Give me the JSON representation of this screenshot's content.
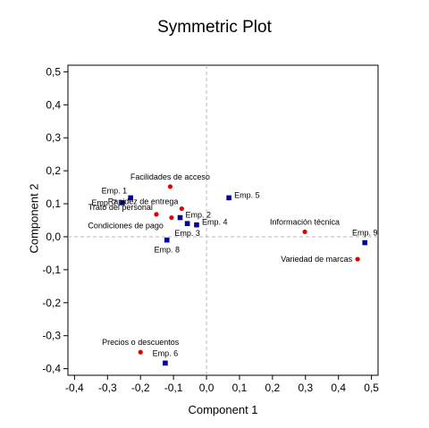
{
  "chart_data": {
    "type": "scatter",
    "title": "Symmetric Plot",
    "xlabel": "Component  1",
    "ylabel": "Component  2",
    "xlim": [
      -0.42,
      0.52
    ],
    "ylim": [
      -0.42,
      0.52
    ],
    "xticks": [
      -0.4,
      -0.3,
      -0.2,
      -0.1,
      0.0,
      0.1,
      0.2,
      0.3,
      0.4,
      0.5
    ],
    "yticks": [
      -0.4,
      -0.3,
      -0.2,
      -0.1,
      0.0,
      0.1,
      0.2,
      0.3,
      0.4,
      0.5
    ],
    "xtick_labels": [
      "-0,4",
      "-0,3",
      "-0,2",
      "-0,1",
      "0,0",
      "0,1",
      "0,2",
      "0,3",
      "0,4",
      "0,5"
    ],
    "ytick_labels": [
      "-0,4",
      "-0,3",
      "-0,2",
      "-0,1",
      "0,0",
      "0,1",
      "0,2",
      "0,3",
      "0,4",
      "0,5"
    ],
    "reference_lines": {
      "x": 0,
      "y": 0,
      "style": "dashed",
      "color": "#b8b8b8"
    },
    "grid": false,
    "series": [
      {
        "marker": "circle",
        "color": "#e00000",
        "points": [
          {
            "label": "Facilidades de acceso",
            "x": -0.11,
            "y": 0.152,
            "anchor": "above"
          },
          {
            "label": "Rapidez de entrega",
            "x": -0.075,
            "y": 0.085,
            "anchor": "left-above"
          },
          {
            "label": "Trato del personal",
            "x": -0.152,
            "y": 0.068,
            "anchor": "left-above"
          },
          {
            "label": "Condiciones de pago",
            "x": -0.106,
            "y": 0.058,
            "anchor": "left-below"
          },
          {
            "label": "Información técnica",
            "x": 0.298,
            "y": 0.015,
            "anchor": "above"
          },
          {
            "label": "Variedad de marcas",
            "x": 0.458,
            "y": -0.068,
            "anchor": "left"
          },
          {
            "label": "Precios o descuentos",
            "x": -0.2,
            "y": -0.35,
            "anchor": "above"
          }
        ]
      },
      {
        "marker": "square",
        "color": "#0000a0",
        "points": [
          {
            "label": "Emp. 1",
            "x": -0.23,
            "y": 0.118,
            "anchor": "left-above"
          },
          {
            "label": "Emp. 2",
            "x": -0.08,
            "y": 0.058,
            "anchor": "right"
          },
          {
            "label": "Emp. 3",
            "x": -0.058,
            "y": 0.04,
            "anchor": "below"
          },
          {
            "label": "Emp. 4",
            "x": -0.03,
            "y": 0.036,
            "anchor": "right"
          },
          {
            "label": "Emp. 5",
            "x": 0.068,
            "y": 0.118,
            "anchor": "right"
          },
          {
            "label": "Emp. 6",
            "x": -0.125,
            "y": -0.383,
            "anchor": "above"
          },
          {
            "label": "Emp. 7",
            "x": -0.255,
            "y": 0.103,
            "anchor": "left"
          },
          {
            "label": "Emp. 8",
            "x": -0.12,
            "y": -0.01,
            "anchor": "below"
          },
          {
            "label": "Emp. 9",
            "x": 0.48,
            "y": -0.018,
            "anchor": "above"
          }
        ]
      }
    ]
  }
}
